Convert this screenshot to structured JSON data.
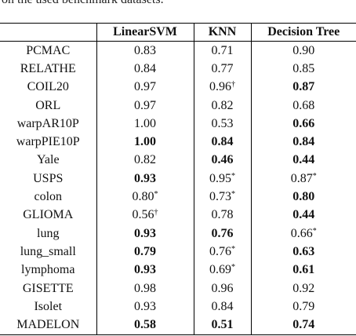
{
  "caption_fragment": "on the used benchmark datasets.",
  "columns": [
    "",
    "LinearSVM",
    "KNN",
    "Decision Tree"
  ],
  "rows": [
    {
      "name": "PCMAC",
      "cells": [
        {
          "v": "0.83",
          "b": false,
          "s": ""
        },
        {
          "v": "0.71",
          "b": false,
          "s": ""
        },
        {
          "v": "0.90",
          "b": false,
          "s": ""
        }
      ]
    },
    {
      "name": "RELATHE",
      "cells": [
        {
          "v": "0.84",
          "b": false,
          "s": ""
        },
        {
          "v": "0.77",
          "b": false,
          "s": ""
        },
        {
          "v": "0.85",
          "b": false,
          "s": ""
        }
      ]
    },
    {
      "name": "COIL20",
      "cells": [
        {
          "v": "0.97",
          "b": false,
          "s": ""
        },
        {
          "v": "0.96",
          "b": false,
          "s": "†"
        },
        {
          "v": "0.87",
          "b": true,
          "s": ""
        }
      ]
    },
    {
      "name": "ORL",
      "cells": [
        {
          "v": "0.97",
          "b": false,
          "s": ""
        },
        {
          "v": "0.82",
          "b": false,
          "s": ""
        },
        {
          "v": "0.68",
          "b": false,
          "s": ""
        }
      ]
    },
    {
      "name": "warpAR10P",
      "cells": [
        {
          "v": "1.00",
          "b": false,
          "s": ""
        },
        {
          "v": "0.53",
          "b": false,
          "s": ""
        },
        {
          "v": "0.66",
          "b": true,
          "s": ""
        }
      ]
    },
    {
      "name": "warpPIE10P",
      "cells": [
        {
          "v": "1.00",
          "b": true,
          "s": ""
        },
        {
          "v": "0.84",
          "b": true,
          "s": ""
        },
        {
          "v": "0.84",
          "b": true,
          "s": ""
        }
      ]
    },
    {
      "name": "Yale",
      "cells": [
        {
          "v": "0.82",
          "b": false,
          "s": ""
        },
        {
          "v": "0.46",
          "b": true,
          "s": ""
        },
        {
          "v": "0.44",
          "b": true,
          "s": ""
        }
      ]
    },
    {
      "name": "USPS",
      "cells": [
        {
          "v": "0.93",
          "b": true,
          "s": ""
        },
        {
          "v": "0.95",
          "b": false,
          "s": "*"
        },
        {
          "v": "0.87",
          "b": false,
          "s": "*"
        }
      ]
    },
    {
      "name": "colon",
      "cells": [
        {
          "v": "0.80",
          "b": false,
          "s": "*"
        },
        {
          "v": "0.73",
          "b": false,
          "s": "*"
        },
        {
          "v": "0.80",
          "b": true,
          "s": ""
        }
      ]
    },
    {
      "name": "GLIOMA",
      "cells": [
        {
          "v": "0.56",
          "b": false,
          "s": "†"
        },
        {
          "v": "0.78",
          "b": false,
          "s": ""
        },
        {
          "v": "0.44",
          "b": true,
          "s": ""
        }
      ]
    },
    {
      "name": "lung",
      "cells": [
        {
          "v": "0.93",
          "b": true,
          "s": ""
        },
        {
          "v": "0.76",
          "b": true,
          "s": ""
        },
        {
          "v": "0.66",
          "b": false,
          "s": "*"
        }
      ]
    },
    {
      "name": "lung_small",
      "cells": [
        {
          "v": "0.79",
          "b": true,
          "s": ""
        },
        {
          "v": "0.76",
          "b": false,
          "s": "*"
        },
        {
          "v": "0.63",
          "b": true,
          "s": ""
        }
      ]
    },
    {
      "name": "lymphoma",
      "cells": [
        {
          "v": "0.93",
          "b": true,
          "s": ""
        },
        {
          "v": "0.69",
          "b": false,
          "s": "*"
        },
        {
          "v": "0.61",
          "b": true,
          "s": ""
        }
      ]
    },
    {
      "name": "GISETTE",
      "cells": [
        {
          "v": "0.98",
          "b": false,
          "s": ""
        },
        {
          "v": "0.96",
          "b": false,
          "s": ""
        },
        {
          "v": "0.92",
          "b": false,
          "s": ""
        }
      ]
    },
    {
      "name": "Isolet",
      "cells": [
        {
          "v": "0.93",
          "b": false,
          "s": ""
        },
        {
          "v": "0.84",
          "b": false,
          "s": ""
        },
        {
          "v": "0.79",
          "b": false,
          "s": ""
        }
      ]
    },
    {
      "name": "MADELON",
      "cells": [
        {
          "v": "0.58",
          "b": true,
          "s": ""
        },
        {
          "v": "0.51",
          "b": true,
          "s": ""
        },
        {
          "v": "0.74",
          "b": true,
          "s": ""
        }
      ]
    }
  ]
}
